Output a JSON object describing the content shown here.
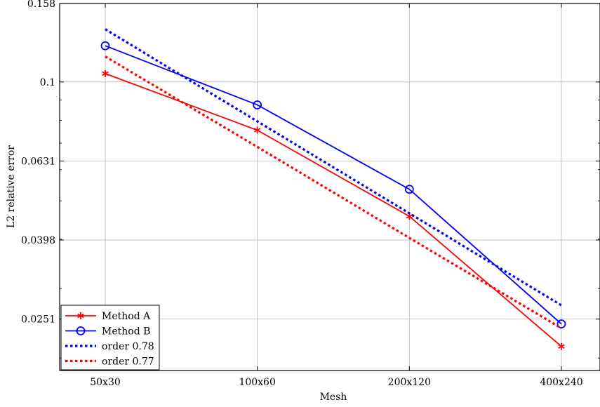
{
  "chart_data": {
    "type": "line",
    "xlabel": "Mesh",
    "ylabel": "L2 relative error",
    "y_scale": "log",
    "ylim": [
      0.0186,
      0.158
    ],
    "categories": [
      "50x30",
      "100x60",
      "200x120",
      "400x240"
    ],
    "y_ticks": [
      {
        "value": 0.158,
        "label": "0.158"
      },
      {
        "value": 0.1,
        "label": "0.1"
      },
      {
        "value": 0.0631,
        "label": "0.0631"
      },
      {
        "value": 0.0398,
        "label": "0.0398"
      },
      {
        "value": 0.0251,
        "label": "0.0251"
      }
    ],
    "grid": true,
    "legend_position": "bottom-left",
    "series": [
      {
        "name": "Method A",
        "color": "#ff0000",
        "style": "solid",
        "marker": "asterisk",
        "values": [
          0.105,
          0.0755,
          0.0457,
          0.0214
        ]
      },
      {
        "name": "Method B",
        "color": "#0000ff",
        "style": "solid",
        "marker": "circle",
        "values": [
          0.1235,
          0.0875,
          0.0535,
          0.0244
        ]
      },
      {
        "name": "order 0.78",
        "color": "#0000ff",
        "style": "dotted",
        "marker": "none",
        "values": [
          0.136,
          0.0795,
          0.0465,
          0.0272
        ]
      },
      {
        "name": "order 0.77",
        "color": "#ff0000",
        "style": "dotted",
        "marker": "none",
        "values": [
          0.116,
          0.0685,
          0.0403,
          0.0238
        ]
      }
    ]
  }
}
